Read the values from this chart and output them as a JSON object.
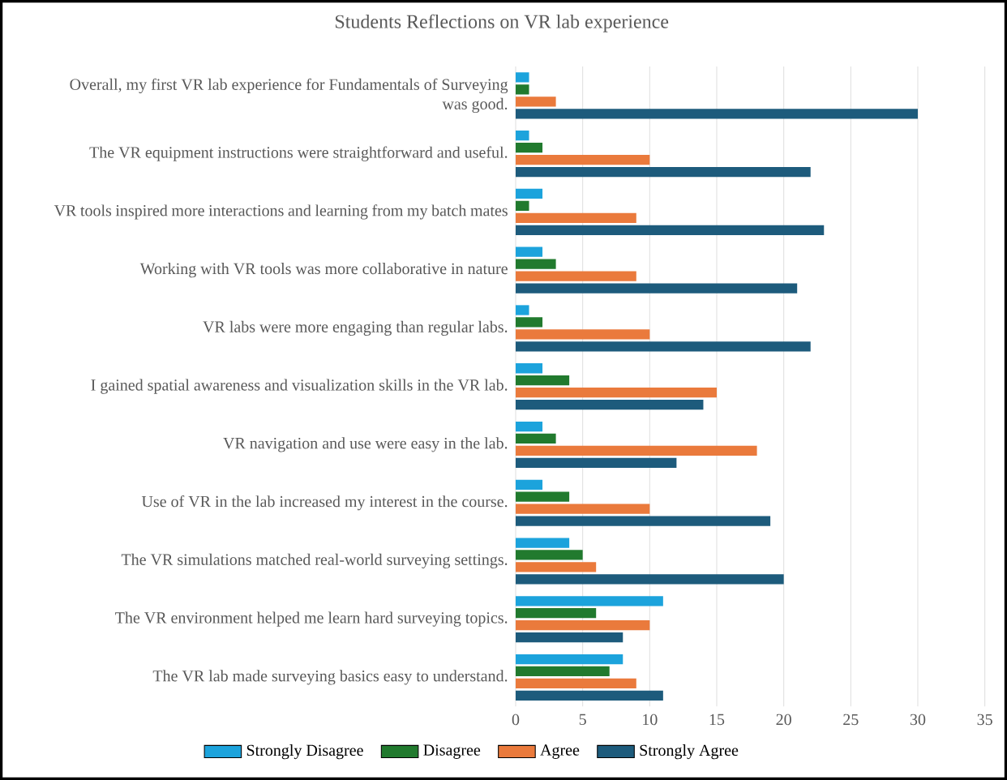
{
  "chart_data": {
    "type": "bar",
    "title": "Students Reflections on VR lab experience",
    "orientation": "horizontal",
    "categories": [
      "Overall, my first VR lab experience for Fundamentals of Surveying was good.",
      "The VR equipment instructions were straightforward and useful.",
      "VR tools inspired more interactions and learning from my batch mates",
      "Working with VR tools was more collaborative in nature",
      "VR labs were more engaging than regular labs.",
      "I gained spatial awareness and visualization skills in the VR lab.",
      "VR navigation and use were easy in the lab.",
      "Use of VR in the lab increased my interest in the course.",
      "The VR simulations matched real-world surveying settings.",
      "The VR environment helped me learn hard surveying topics.",
      "The VR lab made surveying basics easy to understand."
    ],
    "series": [
      {
        "name": "Strongly Disagree",
        "color": "#1ca3dc",
        "values": [
          1,
          1,
          2,
          2,
          1,
          2,
          2,
          2,
          4,
          11,
          8
        ]
      },
      {
        "name": "Disagree",
        "color": "#217a2e",
        "values": [
          1,
          2,
          1,
          3,
          2,
          4,
          3,
          4,
          5,
          6,
          7
        ]
      },
      {
        "name": "Agree",
        "color": "#ea7a3c",
        "values": [
          3,
          10,
          9,
          9,
          10,
          15,
          18,
          10,
          6,
          10,
          9
        ]
      },
      {
        "name": "Strongly Agree",
        "color": "#1d5b7c",
        "values": [
          30,
          22,
          23,
          21,
          22,
          14,
          12,
          19,
          20,
          8,
          11
        ]
      }
    ],
    "xlim": [
      0,
      35
    ],
    "xticks": [
      0,
      5,
      10,
      15,
      20,
      25,
      30,
      35
    ],
    "grid": "x",
    "legend": "bottom"
  }
}
